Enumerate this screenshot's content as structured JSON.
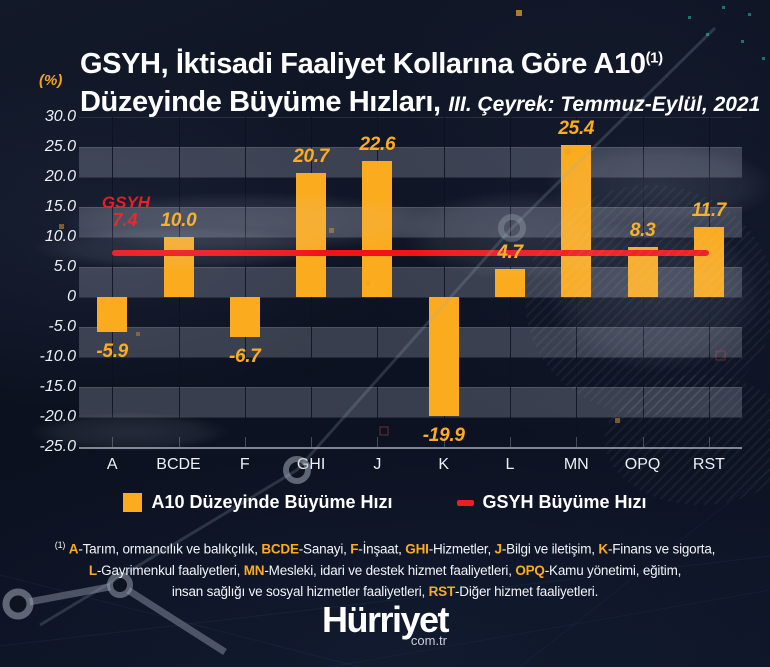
{
  "header": {
    "title_line1": "GSYH, İktisadi Faaliyet Kollarına Göre A10",
    "title_sup": "(1)",
    "title_line2": "Düzeyinde Büyüme Hızları,",
    "title_period": "III. Çeyrek: Temmuz-Eylül, 2021",
    "unit_label": "(%)"
  },
  "chart_data": {
    "type": "bar",
    "title": "GSYH, İktisadi Faaliyet Kollarına Göre A10(1) Düzeyinde Büyüme Hızları",
    "subtitle": "III. Çeyrek: Temmuz-Eylül, 2021",
    "unit": "%",
    "categories": [
      "A",
      "BCDE",
      "F",
      "GHI",
      "J",
      "K",
      "L",
      "MN",
      "OPQ",
      "RST"
    ],
    "values": [
      -5.9,
      10.0,
      -6.7,
      20.7,
      22.6,
      -19.9,
      4.7,
      25.4,
      8.3,
      11.7
    ],
    "value_labels": [
      "-5.9",
      "10.0",
      "-6.7",
      "20.7",
      "22.6",
      "-19.9",
      "4.7",
      "25.4",
      "8.3",
      "11.7"
    ],
    "series_name": "A10 Düzeyinde Büyüme Hızı",
    "reference_line": {
      "name": "GSYH Büyüme Hızı",
      "annotation": "GSYH",
      "value": 7.4,
      "value_label": "7.4",
      "color": "#F01318"
    },
    "ylim": [
      -25,
      30
    ],
    "ytick_step": 5,
    "ytick_labels": [
      "30.0",
      "25.0",
      "20.0",
      "15.0",
      "10.0",
      "5.0",
      "0",
      "-5.0",
      "-10.0",
      "-15.0",
      "-20.0",
      "-25.0"
    ],
    "bar_color": "#FBAB1E",
    "grid": "horizontal-bands",
    "legend_position": "bottom"
  },
  "legend": [
    {
      "label": "A10 Düzeyinde Büyüme Hızı",
      "swatch": "square",
      "color": "#FBAB1E"
    },
    {
      "label": "GSYH Büyüme Hızı",
      "swatch": "dash",
      "color": "#EE1C24"
    }
  ],
  "footnote": {
    "lines": [
      [
        [
          "sup",
          "(1)"
        ],
        [
          "text",
          " "
        ],
        [
          "code",
          "A"
        ],
        [
          "text",
          "-Tarım, ormancılık ve balıkçılık, "
        ],
        [
          "code",
          "BCDE"
        ],
        [
          "text",
          "-Sanayi, "
        ],
        [
          "code",
          "F"
        ],
        [
          "text",
          "-İnşaat, "
        ],
        [
          "code",
          "GHI"
        ],
        [
          "text",
          "-Hizmetler, "
        ],
        [
          "code",
          "J"
        ],
        [
          "text",
          "-Bilgi ve iletişim, "
        ],
        [
          "code",
          "K"
        ],
        [
          "text",
          "-Finans ve sigorta,"
        ]
      ],
      [
        [
          "code",
          "L"
        ],
        [
          "text",
          "-Gayrimenkul faaliyetleri, "
        ],
        [
          "code",
          "MN"
        ],
        [
          "text",
          "-Mesleki, idari ve destek hizmet faaliyetleri, "
        ],
        [
          "code",
          "OPQ"
        ],
        [
          "text",
          "-Kamu yönetimi, eğitim,"
        ]
      ],
      [
        [
          "text",
          "insan sağlığı ve sosyal hizmetler faaliyetleri, "
        ],
        [
          "code",
          "RST"
        ],
        [
          "text",
          "-Diğer hizmet faaliyetleri."
        ]
      ]
    ]
  },
  "logo": {
    "text": "Hürriyet",
    "domain": "com.tr"
  },
  "colors": {
    "background": "#0d1322",
    "band": "rgba(199,206,222,0.24)",
    "bar": "#FBAB1E",
    "reference_line": "#F01318",
    "accent_orange": "#F5A31D",
    "text": "#FFFFFF"
  }
}
